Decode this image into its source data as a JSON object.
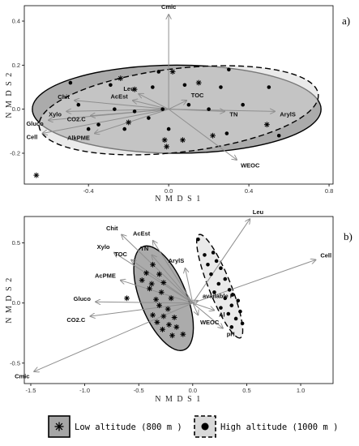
{
  "panels": [
    {
      "panel_label": "a)",
      "xlabel": "N M D S 1",
      "ylabel": "N M D S 2",
      "xlim": [
        -0.72,
        0.82
      ],
      "ylim": [
        -0.34,
        0.47
      ],
      "xticks": [
        "-0.4",
        "0.0",
        "0.4",
        "0.8"
      ],
      "xtick_values": [
        -0.4,
        0.0,
        0.4,
        0.8
      ],
      "yticks": [
        "-0.2",
        "0.0",
        "0.2",
        "0.4"
      ],
      "ytick_values": [
        -0.2,
        0.0,
        0.2,
        0.4
      ],
      "grid": false,
      "vectors": [
        {
          "name": "Cmic",
          "x": 0.0,
          "y": 0.43
        },
        {
          "name": "Leu",
          "x": -0.15,
          "y": 0.07
        },
        {
          "name": "Chit",
          "x": -0.47,
          "y": 0.04
        },
        {
          "name": "AcEst",
          "x": -0.18,
          "y": 0.04
        },
        {
          "name": "TOC",
          "x": 0.09,
          "y": 0.04
        },
        {
          "name": "Xylo",
          "x": -0.51,
          "y": -0.01
        },
        {
          "name": "CO2.C",
          "x": -0.39,
          "y": -0.03
        },
        {
          "name": "Gluco",
          "x": -0.6,
          "y": -0.05
        },
        {
          "name": "Cell",
          "x": -0.63,
          "y": -0.11
        },
        {
          "name": "AlkPME",
          "x": -0.37,
          "y": -0.11
        },
        {
          "name": "TN",
          "x": 0.28,
          "y": -0.01
        },
        {
          "name": "ArylS",
          "x": 0.53,
          "y": -0.01
        },
        {
          "name": "WEOC",
          "x": 0.34,
          "y": -0.23
        }
      ],
      "low_altitude_points": [
        {
          "x": -0.66,
          "y": -0.3
        },
        {
          "x": 0.02,
          "y": 0.17
        },
        {
          "x": -0.24,
          "y": 0.14
        },
        {
          "x": -0.17,
          "y": 0.09
        },
        {
          "x": 0.15,
          "y": 0.12
        },
        {
          "x": -0.02,
          "y": -0.14
        },
        {
          "x": 0.07,
          "y": -0.14
        },
        {
          "x": 0.22,
          "y": -0.12
        },
        {
          "x": -0.2,
          "y": -0.06
        },
        {
          "x": -0.01,
          "y": -0.17
        },
        {
          "x": 0.49,
          "y": -0.07
        }
      ],
      "high_altitude_points": [
        {
          "x": -0.05,
          "y": 0.17
        },
        {
          "x": 0.3,
          "y": 0.18
        },
        {
          "x": -0.49,
          "y": 0.12
        },
        {
          "x": -0.29,
          "y": 0.11
        },
        {
          "x": -0.08,
          "y": 0.1
        },
        {
          "x": 0.08,
          "y": 0.11
        },
        {
          "x": 0.26,
          "y": 0.1
        },
        {
          "x": 0.5,
          "y": 0.1
        },
        {
          "x": -0.45,
          "y": 0.02
        },
        {
          "x": -0.27,
          "y": 0.0
        },
        {
          "x": -0.17,
          "y": -0.01
        },
        {
          "x": -0.03,
          "y": 0.0
        },
        {
          "x": 0.1,
          "y": 0.02
        },
        {
          "x": 0.2,
          "y": 0.0
        },
        {
          "x": 0.37,
          "y": 0.02
        },
        {
          "x": -0.4,
          "y": -0.09
        },
        {
          "x": -0.22,
          "y": -0.09
        },
        {
          "x": 0.0,
          "y": -0.09
        },
        {
          "x": 0.29,
          "y": -0.11
        },
        {
          "x": 0.55,
          "y": -0.12
        },
        {
          "x": -0.1,
          "y": -0.04
        },
        {
          "x": -0.35,
          "y": -0.07
        }
      ],
      "low_ellipse": {
        "cx": 0.04,
        "cy": 0.0,
        "rx": 0.72,
        "ry": 0.2,
        "angle": 0
      },
      "high_ellipse": {
        "cx": 0.05,
        "cy": -0.005,
        "rx": 0.7,
        "ry": 0.19,
        "angle": 6
      }
    },
    {
      "panel_label": "b)",
      "xlabel": "N M D S 1",
      "ylabel": "N M D S 2",
      "xlim": [
        -1.56,
        1.3
      ],
      "ylim": [
        -0.67,
        0.72
      ],
      "xticks": [
        "-1.5",
        "-1.0",
        "-0.5",
        "0.0",
        "0.5",
        "1.0"
      ],
      "xtick_values": [
        -1.5,
        -1.0,
        -0.5,
        0.0,
        0.5,
        1.0
      ],
      "yticks": [
        "-0.5",
        "0.0",
        "0.5"
      ],
      "ytick_values": [
        -0.5,
        0.0,
        0.5
      ],
      "grid": false,
      "vectors": [
        {
          "name": "Leu",
          "x": 0.53,
          "y": 0.7
        },
        {
          "name": "Cell",
          "x": 1.14,
          "y": 0.36
        },
        {
          "name": "Chit",
          "x": -0.66,
          "y": 0.57
        },
        {
          "name": "AcEst",
          "x": -0.37,
          "y": 0.52
        },
        {
          "name": "Xylo",
          "x": -0.73,
          "y": 0.42
        },
        {
          "name": "TN",
          "x": -0.38,
          "y": 0.4
        },
        {
          "name": "TOC",
          "x": -0.57,
          "y": 0.36
        },
        {
          "name": "ArylS",
          "x": -0.07,
          "y": 0.29
        },
        {
          "name": "AcPME",
          "x": -0.67,
          "y": 0.19
        },
        {
          "name": "available P",
          "x": 0.05,
          "y": 0.02
        },
        {
          "name": "Gluco",
          "x": -0.9,
          "y": 0.01
        },
        {
          "name": "CO2.C",
          "x": -0.95,
          "y": -0.11
        },
        {
          "name": "Al",
          "x": 0.2,
          "y": -0.06
        },
        {
          "name": "WEOC",
          "x": 0.05,
          "y": -0.1
        },
        {
          "name": "pH",
          "x": 0.28,
          "y": -0.21
        },
        {
          "name": "Cmic",
          "x": -1.47,
          "y": -0.57
        }
      ],
      "low_altitude_points": [
        {
          "x": -0.37,
          "y": 0.32
        },
        {
          "x": -0.43,
          "y": 0.25
        },
        {
          "x": -0.31,
          "y": 0.24
        },
        {
          "x": -0.47,
          "y": 0.19
        },
        {
          "x": -0.38,
          "y": 0.16
        },
        {
          "x": -0.27,
          "y": 0.17
        },
        {
          "x": -0.4,
          "y": 0.12
        },
        {
          "x": -0.29,
          "y": 0.09
        },
        {
          "x": -0.61,
          "y": 0.04
        },
        {
          "x": -0.34,
          "y": 0.03
        },
        {
          "x": -0.2,
          "y": 0.04
        },
        {
          "x": -0.31,
          "y": -0.02
        },
        {
          "x": -0.23,
          "y": -0.05
        },
        {
          "x": -0.37,
          "y": -0.1
        },
        {
          "x": -0.27,
          "y": -0.11
        },
        {
          "x": -0.17,
          "y": -0.12
        },
        {
          "x": -0.33,
          "y": -0.16
        },
        {
          "x": -0.22,
          "y": -0.18
        },
        {
          "x": -0.15,
          "y": -0.2
        },
        {
          "x": -0.28,
          "y": -0.22
        },
        {
          "x": -0.19,
          "y": -0.27
        },
        {
          "x": -0.09,
          "y": -0.26
        }
      ],
      "high_altitude_points": [
        {
          "x": 0.05,
          "y": 0.53
        },
        {
          "x": 0.19,
          "y": 0.42
        },
        {
          "x": 0.11,
          "y": 0.4
        },
        {
          "x": 0.22,
          "y": 0.35
        },
        {
          "x": 0.14,
          "y": 0.32
        },
        {
          "x": 0.26,
          "y": 0.29
        },
        {
          "x": 0.17,
          "y": 0.24
        },
        {
          "x": 0.3,
          "y": 0.2
        },
        {
          "x": 0.24,
          "y": 0.16
        },
        {
          "x": 0.34,
          "y": 0.11
        },
        {
          "x": 0.2,
          "y": 0.09
        },
        {
          "x": 0.37,
          "y": 0.07
        },
        {
          "x": 0.3,
          "y": 0.04
        },
        {
          "x": 0.42,
          "y": 0.02
        },
        {
          "x": 0.36,
          "y": -0.02
        },
        {
          "x": 0.26,
          "y": -0.04
        },
        {
          "x": 0.44,
          "y": -0.07
        },
        {
          "x": 0.33,
          "y": -0.09
        },
        {
          "x": 0.4,
          "y": -0.13
        },
        {
          "x": 0.46,
          "y": -0.17
        },
        {
          "x": 0.36,
          "y": -0.2
        }
      ],
      "low_ellipse": {
        "cx": -0.27,
        "cy": 0.04,
        "rx": 0.47,
        "ry": 0.21,
        "angle": -66
      },
      "high_ellipse": {
        "cx": 0.25,
        "cy": 0.14,
        "rx": 0.47,
        "ry": 0.1,
        "angle": -66
      }
    }
  ],
  "legend": {
    "low_label": "Low altitude (800 m )",
    "high_label": "High altitude (1000 m )"
  },
  "colors": {
    "low_fill": "#a6a6a6",
    "high_fill": "#d9d9d9",
    "vector": "#8f8f8f",
    "outline": "#000000"
  }
}
